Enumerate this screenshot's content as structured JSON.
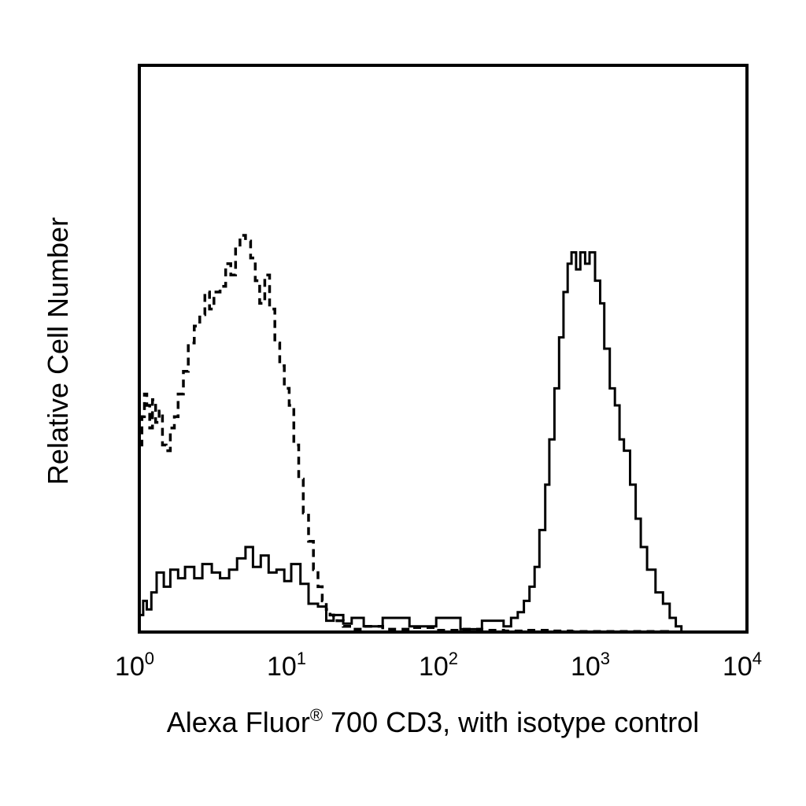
{
  "chart_data": {
    "type": "line",
    "title": "",
    "xlabel": {
      "prefix": "Alexa Fluor",
      "superscript": "®",
      "suffix": " 700 CD3, with isotype control"
    },
    "ylabel": "Relative Cell Number",
    "x_scale": "log",
    "xlim": [
      1,
      10000
    ],
    "ylim": [
      0,
      100
    ],
    "grid": false,
    "legend": "none",
    "x_ticks": [
      {
        "value": 1,
        "base": "10",
        "exponent": "0"
      },
      {
        "value": 10,
        "base": "10",
        "exponent": "1"
      },
      {
        "value": 100,
        "base": "10",
        "exponent": "2"
      },
      {
        "value": 1000,
        "base": "10",
        "exponent": "3"
      },
      {
        "value": 10000,
        "base": "10",
        "exponent": "4"
      }
    ],
    "series": [
      {
        "style": "solid",
        "x": [
          1.0,
          1.06,
          1.12,
          1.2,
          1.3,
          1.45,
          1.6,
          1.8,
          2.0,
          2.3,
          2.6,
          3.0,
          3.4,
          3.9,
          4.4,
          5.0,
          5.6,
          6.3,
          7.1,
          8.0,
          9.0,
          10.0,
          11.5,
          13.0,
          15.0,
          17.0,
          19.0,
          22.0,
          25.0,
          30.0,
          40.0,
          60.0,
          90.0,
          130.0,
          180.0,
          250.0,
          280.0,
          310.0,
          340.0,
          370.0,
          400.0,
          430.0,
          470.0,
          500.0,
          540.0,
          580.0,
          620.0,
          660.0,
          700.0,
          750.0,
          800.0,
          860.0,
          920.0,
          1000.0,
          1080.0,
          1150.0,
          1250.0,
          1350.0,
          1450.0,
          1550.0,
          1700.0,
          1850.0,
          2000.0,
          2200.0,
          2500.0,
          2800.0,
          3100.0,
          3400.0,
          3700.0
        ],
        "y": [
          3.0,
          5.5,
          4.0,
          7.0,
          10.5,
          8.0,
          11.0,
          9.5,
          11.5,
          9.5,
          12.0,
          10.5,
          9.5,
          11.0,
          13.0,
          15.0,
          11.5,
          13.5,
          10.5,
          11.0,
          9.0,
          12.0,
          8.5,
          5.0,
          4.5,
          2.0,
          3.0,
          1.5,
          2.5,
          1.0,
          2.5,
          1.0,
          2.5,
          0.5,
          2.0,
          1.0,
          2.5,
          3.5,
          5.5,
          8.0,
          11.5,
          18.0,
          26.0,
          34.0,
          43.0,
          52.0,
          60.0,
          65.0,
          67.0,
          64.0,
          67.0,
          65.0,
          67.0,
          62.0,
          58.0,
          50.0,
          43.0,
          40.0,
          34.0,
          32.0,
          26.0,
          20.0,
          15.0,
          11.0,
          7.0,
          5.0,
          2.5,
          1.0,
          0.0
        ]
      },
      {
        "style": "dashed",
        "x": [
          1.0,
          1.04,
          1.08,
          1.12,
          1.17,
          1.22,
          1.28,
          1.35,
          1.42,
          1.5,
          1.6,
          1.7,
          1.8,
          1.95,
          2.1,
          2.3,
          2.5,
          2.7,
          2.9,
          3.1,
          3.4,
          3.7,
          4.0,
          4.3,
          4.6,
          5.0,
          5.4,
          5.8,
          6.2,
          6.7,
          7.2,
          7.8,
          8.4,
          9.0,
          9.7,
          10.4,
          11.2,
          12.0,
          13.0,
          14.0,
          15.0,
          16.0,
          17.0,
          18.0,
          19.0,
          20.0,
          22.0,
          25.0,
          30.0,
          40.0,
          60.0,
          90.0,
          130.0,
          180.0,
          250.0,
          350.0,
          500.0,
          700.0,
          1000.0,
          1500.0,
          2000.0,
          3000.0,
          3500.0
        ],
        "y": [
          33.0,
          38.0,
          42.0,
          40.0,
          36.0,
          41.0,
          37.0,
          39.0,
          33.0,
          32.0,
          36.0,
          38.0,
          42.0,
          46.0,
          51.0,
          54.0,
          56.0,
          60.0,
          57.0,
          60.0,
          61.0,
          65.0,
          63.0,
          68.0,
          70.0,
          69.0,
          66.0,
          62.0,
          58.0,
          63.0,
          57.0,
          51.0,
          47.0,
          43.0,
          40.0,
          33.0,
          27.0,
          21.0,
          16.0,
          11.0,
          8.0,
          5.5,
          4.0,
          3.0,
          2.5,
          2.0,
          1.0,
          0.5,
          1.0,
          0.5,
          0.8,
          0.3,
          0.5,
          0.3,
          0.2,
          0.3,
          0.2,
          0.1,
          0.1,
          0.1,
          0.1,
          0.0,
          0.0
        ]
      }
    ]
  }
}
